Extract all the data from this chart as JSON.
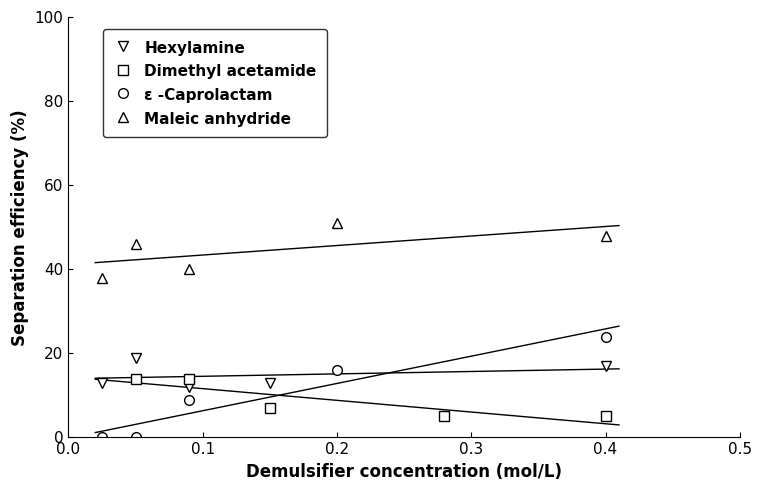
{
  "series": [
    {
      "label": "Hexylamine",
      "marker": "v",
      "x": [
        0.025,
        0.05,
        0.09,
        0.15,
        0.4
      ],
      "y": [
        13,
        19,
        12,
        13,
        17
      ],
      "trendline": true
    },
    {
      "label": "Dimethyl acetamide",
      "marker": "s",
      "x": [
        0.05,
        0.09,
        0.15,
        0.28,
        0.4
      ],
      "y": [
        14,
        14,
        7,
        5,
        5
      ],
      "trendline": true
    },
    {
      "label": "ε -Caprolactam",
      "marker": "o",
      "x": [
        0.025,
        0.05,
        0.09,
        0.2,
        0.4
      ],
      "y": [
        0,
        0,
        9,
        16,
        24
      ],
      "trendline": true
    },
    {
      "label": "Maleic anhydride",
      "marker": "^",
      "x": [
        0.025,
        0.05,
        0.09,
        0.2,
        0.4
      ],
      "y": [
        38,
        46,
        40,
        51,
        48
      ],
      "trendline": true
    }
  ],
  "xlabel": "Demulsifier concentration (mol/L)",
  "ylabel": "Separation efficiency (%)",
  "xlim": [
    0.0,
    0.5
  ],
  "ylim": [
    0,
    100
  ],
  "xticks": [
    0.0,
    0.1,
    0.2,
    0.3,
    0.4,
    0.5
  ],
  "yticks": [
    0,
    20,
    40,
    60,
    80,
    100
  ],
  "trendline_x_start": 0.02,
  "trendline_x_end": 0.41,
  "marker_size": 7,
  "line_color": "black",
  "marker_color": "black",
  "marker_facecolor": "white",
  "font_size": 11,
  "label_font_size": 12,
  "background_color": "#ffffff"
}
